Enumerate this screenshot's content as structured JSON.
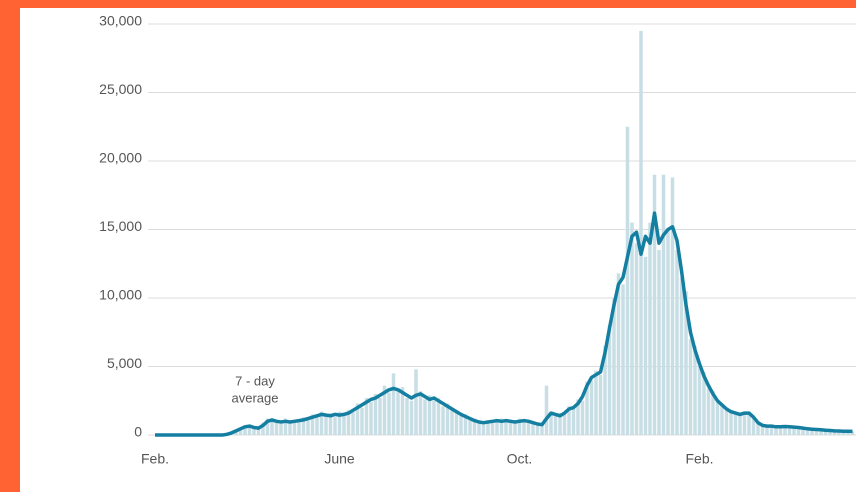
{
  "chart_data": {
    "type": "combo",
    "annotation": [
      "7 - day",
      "average"
    ],
    "categories": [
      "Feb.",
      null,
      null,
      null,
      null,
      null,
      null,
      null,
      null,
      null,
      null,
      null,
      null,
      null,
      null,
      null,
      null,
      null,
      null,
      null,
      null,
      null,
      null,
      null,
      null,
      null,
      null,
      null,
      null,
      null,
      null,
      null,
      null,
      null,
      null,
      null,
      null,
      null,
      null,
      null,
      null,
      "June",
      null,
      null,
      null,
      null,
      null,
      null,
      null,
      null,
      null,
      null,
      null,
      null,
      null,
      null,
      null,
      null,
      null,
      null,
      null,
      null,
      null,
      null,
      null,
      null,
      null,
      null,
      null,
      null,
      null,
      null,
      null,
      null,
      null,
      null,
      null,
      null,
      null,
      null,
      null,
      "Oct.",
      null,
      null,
      null,
      null,
      null,
      null,
      null,
      null,
      null,
      null,
      null,
      null,
      null,
      null,
      null,
      null,
      null,
      null,
      null,
      null,
      null,
      null,
      null,
      null,
      null,
      null,
      null,
      null,
      null,
      null,
      null,
      null,
      null,
      null,
      null,
      null,
      null,
      null,
      null,
      "Feb.",
      null,
      null,
      null,
      null,
      null,
      null,
      null,
      null,
      null,
      null,
      null,
      null,
      null,
      null,
      null,
      null,
      null,
      null,
      null,
      null,
      null,
      null,
      null,
      null,
      null,
      null,
      null,
      null,
      null,
      null,
      null,
      null,
      null,
      null
    ],
    "series": [
      {
        "type": "bar",
        "color": "#c8dee5",
        "values": [
          0,
          0,
          0,
          0,
          0,
          0,
          0,
          0,
          0,
          0,
          0,
          0,
          0,
          0,
          0,
          0,
          80,
          200,
          350,
          500,
          700,
          600,
          500,
          600,
          900,
          1200,
          1000,
          1100,
          800,
          1200,
          900,
          1100,
          1000,
          1300,
          1100,
          1500,
          1300,
          1700,
          1400,
          1600,
          1300,
          1700,
          1400,
          1800,
          1700,
          2300,
          2000,
          2700,
          2400,
          3000,
          2700,
          3600,
          3100,
          4500,
          3200,
          3500,
          2700,
          2500,
          4800,
          3200,
          2600,
          2900,
          2500,
          2700,
          2100,
          2300,
          1800,
          1800,
          1400,
          1500,
          1100,
          1200,
          900,
          1000,
          900,
          1100,
          1000,
          1200,
          900,
          1100,
          1000,
          1200,
          900,
          1100,
          800,
          900,
          700,
          3600,
          1700,
          1400,
          1600,
          1500,
          2100,
          1900,
          2600,
          2500,
          3900,
          4000,
          4700,
          4400,
          6500,
          8000,
          10000,
          11800,
          11000,
          22500,
          15500,
          14000,
          29500,
          13000,
          15500,
          19000,
          13500,
          19000,
          15000,
          18800,
          13500,
          11500,
          10500,
          7000,
          6500,
          5000,
          4600,
          3400,
          3200,
          2400,
          2300,
          1800,
          1800,
          1500,
          1600,
          1500,
          1700,
          1200,
          1000,
          700,
          700,
          600,
          650,
          550,
          650,
          600,
          600,
          500,
          550,
          400,
          450,
          400,
          400,
          350,
          350,
          300,
          300,
          250,
          300,
          250
        ]
      },
      {
        "type": "line",
        "color": "#157fa2",
        "values": [
          0,
          0,
          0,
          0,
          0,
          0,
          0,
          0,
          0,
          0,
          0,
          0,
          0,
          0,
          0,
          0,
          50,
          150,
          300,
          450,
          600,
          650,
          550,
          500,
          700,
          1000,
          1100,
          1000,
          950,
          1000,
          950,
          1000,
          1050,
          1100,
          1200,
          1300,
          1400,
          1500,
          1450,
          1400,
          1500,
          1450,
          1500,
          1600,
          1800,
          2000,
          2200,
          2400,
          2600,
          2700,
          2900,
          3100,
          3300,
          3400,
          3300,
          3100,
          2900,
          2700,
          2900,
          3000,
          2800,
          2600,
          2700,
          2500,
          2300,
          2100,
          1900,
          1700,
          1500,
          1350,
          1200,
          1050,
          950,
          900,
          950,
          1000,
          1050,
          1000,
          1050,
          1000,
          950,
          1000,
          1050,
          1000,
          900,
          800,
          750,
          1200,
          1600,
          1500,
          1400,
          1600,
          1900,
          2000,
          2300,
          2800,
          3600,
          4200,
          4400,
          4600,
          6000,
          7800,
          9500,
          11000,
          11500,
          13000,
          14500,
          14800,
          13200,
          14500,
          14000,
          16200,
          14000,
          14600,
          15000,
          15200,
          14200,
          12000,
          9500,
          7500,
          6200,
          5200,
          4300,
          3600,
          3000,
          2500,
          2200,
          1900,
          1700,
          1600,
          1500,
          1600,
          1600,
          1300,
          900,
          700,
          650,
          650,
          600,
          600,
          620,
          600,
          580,
          550,
          500,
          450,
          420,
          400,
          380,
          350,
          330,
          300,
          290,
          280,
          270,
          260
        ]
      }
    ],
    "ylim": [
      0,
      30000
    ],
    "yticks": [
      0,
      {
        "value": 5000,
        "label": "5,000"
      },
      {
        "value": 10000,
        "label": "10,000"
      },
      {
        "value": 15000,
        "label": "15,000"
      },
      {
        "value": 20000,
        "label": "20,000"
      },
      {
        "value": 25000,
        "label": "25,000"
      },
      {
        "value": 30000,
        "label": "30,000"
      }
    ],
    "grid": true
  }
}
